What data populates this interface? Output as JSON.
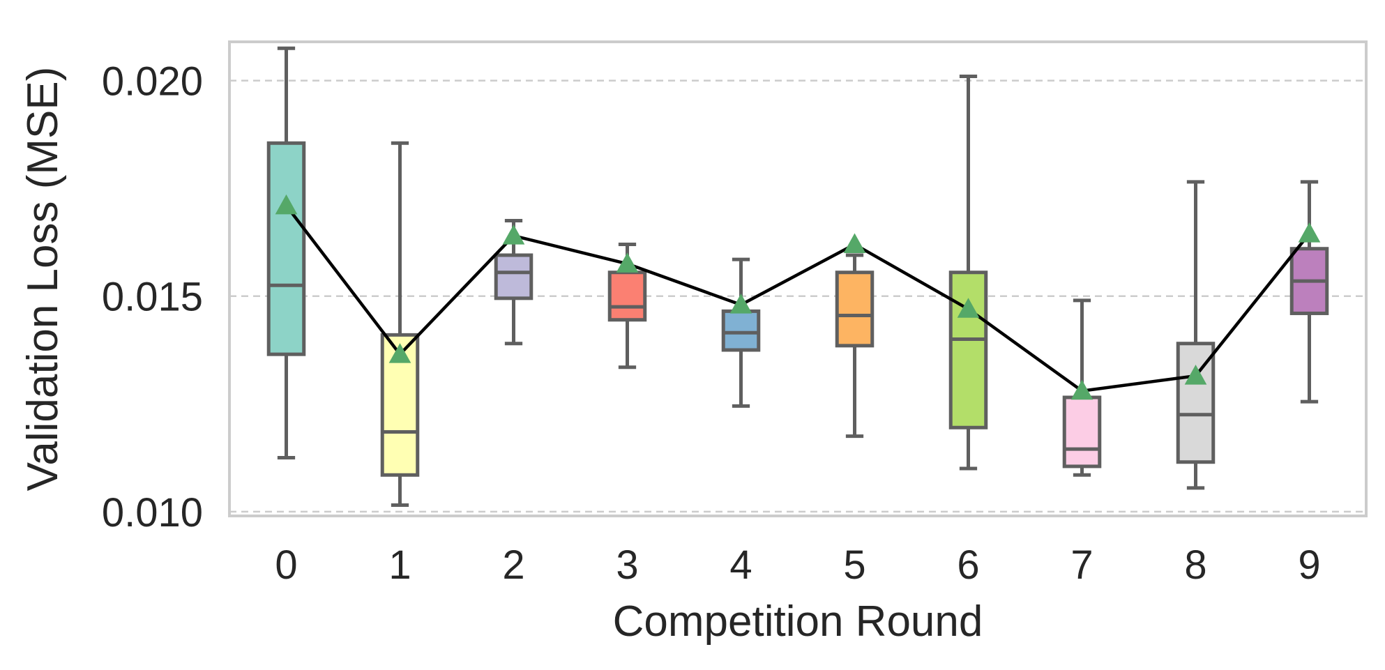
{
  "chart_data": {
    "type": "box",
    "xlabel": "Competition Round",
    "ylabel": "Validation Loss (MSE)",
    "ylim": [
      0.0099,
      0.0209
    ],
    "yticks": [
      {
        "value": 0.01,
        "label": "0.010"
      },
      {
        "value": 0.015,
        "label": "0.015"
      },
      {
        "value": 0.02,
        "label": "0.020"
      }
    ],
    "grid": "horizontal dashed",
    "categories": [
      "0",
      "1",
      "2",
      "3",
      "4",
      "5",
      "6",
      "7",
      "8",
      "9"
    ],
    "boxes": [
      {
        "category": "0",
        "whislo": 0.01125,
        "q1": 0.01365,
        "med": 0.01525,
        "q3": 0.01855,
        "whishi": 0.02075,
        "mean": 0.0171,
        "color": "#8dd3c7"
      },
      {
        "category": "1",
        "whislo": 0.01015,
        "q1": 0.01085,
        "med": 0.01185,
        "q3": 0.0141,
        "whishi": 0.01855,
        "mean": 0.01365,
        "color": "#ffffb3"
      },
      {
        "category": "2",
        "whislo": 0.0139,
        "q1": 0.01495,
        "med": 0.01555,
        "q3": 0.01595,
        "whishi": 0.01675,
        "mean": 0.0164,
        "color": "#bebada"
      },
      {
        "category": "3",
        "whislo": 0.01335,
        "q1": 0.01445,
        "med": 0.01475,
        "q3": 0.01555,
        "whishi": 0.0162,
        "mean": 0.01575,
        "color": "#fb8072"
      },
      {
        "category": "4",
        "whislo": 0.01245,
        "q1": 0.01375,
        "med": 0.01415,
        "q3": 0.01465,
        "whishi": 0.01585,
        "mean": 0.0148,
        "color": "#80b1d3"
      },
      {
        "category": "5",
        "whislo": 0.01175,
        "q1": 0.01385,
        "med": 0.01455,
        "q3": 0.01555,
        "whishi": 0.01595,
        "mean": 0.0162,
        "color": "#fdb462"
      },
      {
        "category": "6",
        "whislo": 0.011,
        "q1": 0.01195,
        "med": 0.014,
        "q3": 0.01555,
        "whishi": 0.0201,
        "mean": 0.0147,
        "color": "#b3de69"
      },
      {
        "category": "7",
        "whislo": 0.01085,
        "q1": 0.01105,
        "med": 0.01145,
        "q3": 0.01265,
        "whishi": 0.0149,
        "mean": 0.0128,
        "color": "#fccde5"
      },
      {
        "category": "8",
        "whislo": 0.01055,
        "q1": 0.01115,
        "med": 0.01225,
        "q3": 0.0139,
        "whishi": 0.01765,
        "mean": 0.01315,
        "color": "#d9d9d9"
      },
      {
        "category": "9",
        "whislo": 0.01255,
        "q1": 0.0146,
        "med": 0.01535,
        "q3": 0.0161,
        "whishi": 0.01765,
        "mean": 0.01645,
        "color": "#bc80bd"
      }
    ],
    "mean_line_color": "#000000",
    "mean_marker": "triangle",
    "mean_marker_color": "#55a868",
    "box_edge_color": "#5f5f5f"
  }
}
